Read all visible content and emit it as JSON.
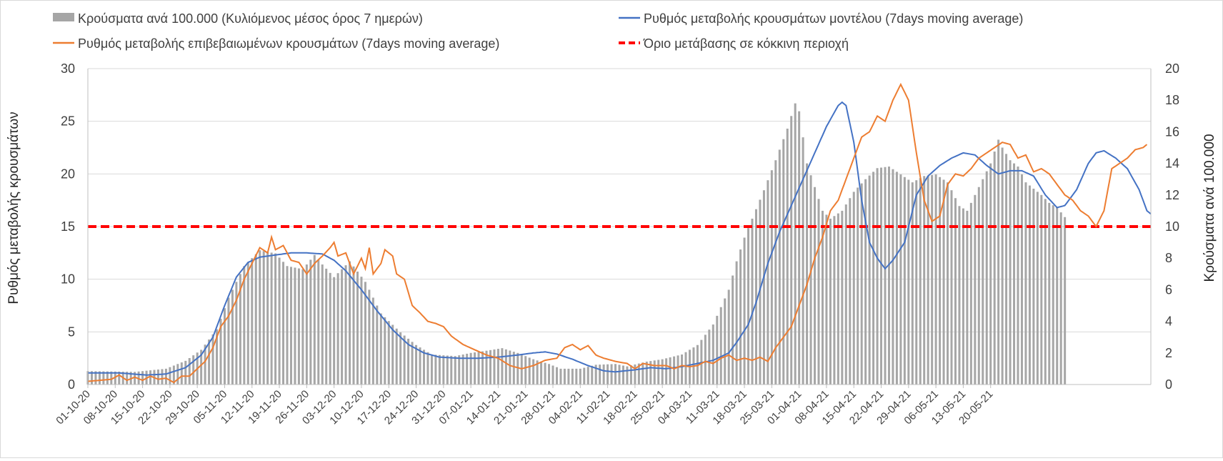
{
  "chart_data": {
    "type": "bar+line",
    "legend": {
      "bars": "Κρούσματα ανά 100.000 (Κυλιόμενος μέσος όρος 7 ημερών)",
      "model_rate": "Ρυθμός μεταβολής κρουσμάτων μοντέλου (7days moving average)",
      "confirmed_rate": "Ρυθμός μεταβολής επιβεβαιωμένων κρουσμάτων (7days moving average)",
      "threshold": "Όριο μετάβασης σε κόκκινη περιοχή"
    },
    "left_axis": {
      "label": "Ρυθμός μεταβολής κρουσμάτων",
      "min": 0,
      "max": 30,
      "ticks": [
        "0",
        "5",
        "10",
        "15",
        "20",
        "25",
        "30"
      ]
    },
    "right_axis": {
      "label": "Κρούσματα ανά 100.000",
      "min": 0,
      "max": 20,
      "ticks": [
        "0",
        "2",
        "4",
        "6",
        "8",
        "10",
        "12",
        "14",
        "16",
        "18",
        "20"
      ]
    },
    "threshold_value": 15,
    "start_date": "2020-10-01",
    "x_tick_labels": [
      "01-10-20",
      "08-10-20",
      "15-10-20",
      "22-10-20",
      "29-10-20",
      "05-11-20",
      "12-11-20",
      "19-11-20",
      "26-11-20",
      "03-12-20",
      "10-12-20",
      "17-12-20",
      "24-12-20",
      "31-12-20",
      "07-01-21",
      "14-01-21",
      "21-01-21",
      "28-01-21",
      "04-02-21",
      "11-02-21",
      "18-02-21",
      "25-02-21",
      "04-03-21",
      "11-03-21",
      "18-03-21",
      "25-03-21",
      "01-04-21",
      "08-04-21",
      "15-04-21",
      "22-04-21",
      "29-04-21",
      "06-05-21",
      "13-05-21",
      "20-05-21"
    ],
    "bars_keypoints": [
      [
        0,
        0.85
      ],
      [
        12,
        0.8
      ],
      [
        20,
        1.0
      ],
      [
        25,
        1.5
      ],
      [
        29,
        2.2
      ],
      [
        33,
        3.5
      ],
      [
        36,
        5.5
      ],
      [
        40,
        7.5
      ],
      [
        44,
        8.5
      ],
      [
        48,
        8.3
      ],
      [
        51,
        7.5
      ],
      [
        55,
        7.3
      ],
      [
        58,
        8.2
      ],
      [
        60,
        7.6
      ],
      [
        63,
        6.8
      ],
      [
        67,
        7.8
      ],
      [
        71,
        6.5
      ],
      [
        75,
        4.5
      ],
      [
        80,
        3.3
      ],
      [
        84,
        2.5
      ],
      [
        88,
        1.9
      ],
      [
        94,
        1.8
      ],
      [
        98,
        2.0
      ],
      [
        101,
        2.1
      ],
      [
        106,
        2.3
      ],
      [
        110,
        2.0
      ],
      [
        114,
        1.6
      ],
      [
        118,
        1.3
      ],
      [
        121,
        1.0
      ],
      [
        126,
        1.0
      ],
      [
        130,
        1.25
      ],
      [
        135,
        1.3
      ],
      [
        138,
        1.15
      ],
      [
        143,
        1.45
      ],
      [
        147,
        1.6
      ],
      [
        152,
        1.9
      ],
      [
        156,
        2.5
      ],
      [
        160,
        3.8
      ],
      [
        164,
        6.0
      ],
      [
        166,
        7.8
      ],
      [
        168,
        9.3
      ],
      [
        170,
        10.5
      ],
      [
        173,
        12.3
      ],
      [
        176,
        14.2
      ],
      [
        179,
        16.2
      ],
      [
        181,
        17.8
      ],
      [
        182,
        17.3
      ],
      [
        184,
        14.0
      ],
      [
        186,
        12.5
      ],
      [
        188,
        11.0
      ],
      [
        190,
        10.5
      ],
      [
        193,
        11.0
      ],
      [
        196,
        12.2
      ],
      [
        199,
        13.0
      ],
      [
        202,
        13.7
      ],
      [
        205,
        13.8
      ],
      [
        208,
        13.3
      ],
      [
        211,
        12.8
      ],
      [
        214,
        13.2
      ],
      [
        217,
        13.3
      ],
      [
        220,
        12.8
      ],
      [
        223,
        11.3
      ],
      [
        225,
        11.0
      ],
      [
        228,
        12.5
      ],
      [
        231,
        14.0
      ],
      [
        233,
        15.5
      ],
      [
        234,
        15.0
      ],
      [
        236,
        14.2
      ],
      [
        238,
        13.8
      ],
      [
        240,
        12.8
      ],
      [
        242,
        12.4
      ],
      [
        244,
        12.0
      ],
      [
        246,
        11.5
      ],
      [
        248,
        11.2
      ],
      [
        250,
        10.6
      ]
    ],
    "model_keypoints": [
      [
        0,
        1.1
      ],
      [
        8,
        1.1
      ],
      [
        15,
        0.9
      ],
      [
        20,
        1.0
      ],
      [
        25,
        1.6
      ],
      [
        29,
        2.8
      ],
      [
        32,
        4.5
      ],
      [
        35,
        7.5
      ],
      [
        38,
        10.2
      ],
      [
        41,
        11.6
      ],
      [
        44,
        12.1
      ],
      [
        48,
        12.3
      ],
      [
        52,
        12.5
      ],
      [
        56,
        12.5
      ],
      [
        60,
        12.4
      ],
      [
        63,
        11.8
      ],
      [
        66,
        10.8
      ],
      [
        70,
        9.0
      ],
      [
        74,
        7.0
      ],
      [
        78,
        5.2
      ],
      [
        82,
        3.8
      ],
      [
        86,
        3.0
      ],
      [
        90,
        2.6
      ],
      [
        95,
        2.5
      ],
      [
        100,
        2.5
      ],
      [
        105,
        2.6
      ],
      [
        110,
        2.8
      ],
      [
        114,
        3.0
      ],
      [
        117,
        3.1
      ],
      [
        120,
        2.9
      ],
      [
        124,
        2.4
      ],
      [
        128,
        1.8
      ],
      [
        132,
        1.3
      ],
      [
        135,
        1.2
      ],
      [
        140,
        1.4
      ],
      [
        144,
        1.6
      ],
      [
        148,
        1.5
      ],
      [
        152,
        1.7
      ],
      [
        156,
        2.0
      ],
      [
        160,
        2.3
      ],
      [
        164,
        3.0
      ],
      [
        166,
        4.0
      ],
      [
        169,
        5.7
      ],
      [
        171,
        7.8
      ],
      [
        174,
        11.5
      ],
      [
        177,
        14.5
      ],
      [
        180,
        17.0
      ],
      [
        183,
        19.5
      ],
      [
        186,
        22.0
      ],
      [
        189,
        24.5
      ],
      [
        192,
        26.5
      ],
      [
        193,
        26.8
      ],
      [
        194,
        26.5
      ],
      [
        196,
        23.0
      ],
      [
        198,
        17.5
      ],
      [
        200,
        13.5
      ],
      [
        202,
        12.0
      ],
      [
        204,
        11.0
      ],
      [
        206,
        11.8
      ],
      [
        209,
        13.5
      ],
      [
        212,
        18.0
      ],
      [
        215,
        19.8
      ],
      [
        218,
        20.8
      ],
      [
        221,
        21.5
      ],
      [
        224,
        22.0
      ],
      [
        227,
        21.8
      ],
      [
        230,
        20.8
      ],
      [
        233,
        20.0
      ],
      [
        236,
        20.3
      ],
      [
        239,
        20.3
      ],
      [
        242,
        19.8
      ],
      [
        245,
        18.0
      ],
      [
        248,
        16.8
      ],
      [
        250,
        17.0
      ],
      [
        253,
        18.5
      ],
      [
        256,
        21.0
      ],
      [
        258,
        22.0
      ],
      [
        260,
        22.2
      ],
      [
        263,
        21.5
      ],
      [
        266,
        20.5
      ],
      [
        269,
        18.5
      ],
      [
        271,
        16.5
      ],
      [
        272,
        16.2
      ]
    ],
    "confirmed_keypoints": [
      [
        0,
        0.3
      ],
      [
        3,
        0.4
      ],
      [
        6,
        0.5
      ],
      [
        8,
        0.9
      ],
      [
        10,
        0.4
      ],
      [
        12,
        0.7
      ],
      [
        14,
        0.4
      ],
      [
        16,
        0.8
      ],
      [
        18,
        0.5
      ],
      [
        20,
        0.6
      ],
      [
        22,
        0.2
      ],
      [
        24,
        0.8
      ],
      [
        26,
        0.8
      ],
      [
        28,
        1.5
      ],
      [
        30,
        2.2
      ],
      [
        32,
        3.5
      ],
      [
        34,
        5.5
      ],
      [
        36,
        6.5
      ],
      [
        38,
        8.0
      ],
      [
        40,
        10.0
      ],
      [
        42,
        11.5
      ],
      [
        44,
        13.0
      ],
      [
        46,
        12.5
      ],
      [
        47,
        14.0
      ],
      [
        48,
        12.8
      ],
      [
        50,
        13.2
      ],
      [
        52,
        11.8
      ],
      [
        54,
        11.6
      ],
      [
        56,
        10.5
      ],
      [
        58,
        11.5
      ],
      [
        60,
        12.2
      ],
      [
        62,
        13.0
      ],
      [
        63,
        13.5
      ],
      [
        64,
        12.2
      ],
      [
        66,
        12.5
      ],
      [
        68,
        10.5
      ],
      [
        70,
        12.0
      ],
      [
        71,
        11.0
      ],
      [
        72,
        13.0
      ],
      [
        73,
        10.5
      ],
      [
        75,
        11.5
      ],
      [
        76,
        12.8
      ],
      [
        78,
        12.2
      ],
      [
        79,
        10.5
      ],
      [
        81,
        10.0
      ],
      [
        83,
        7.5
      ],
      [
        85,
        6.8
      ],
      [
        87,
        6.0
      ],
      [
        89,
        5.8
      ],
      [
        91,
        5.5
      ],
      [
        93,
        4.6
      ],
      [
        96,
        3.8
      ],
      [
        99,
        3.3
      ],
      [
        102,
        2.8
      ],
      [
        105,
        2.5
      ],
      [
        108,
        1.8
      ],
      [
        111,
        1.5
      ],
      [
        114,
        1.8
      ],
      [
        117,
        2.3
      ],
      [
        120,
        2.5
      ],
      [
        122,
        3.5
      ],
      [
        124,
        3.8
      ],
      [
        126,
        3.3
      ],
      [
        128,
        3.7
      ],
      [
        130,
        2.8
      ],
      [
        132,
        2.5
      ],
      [
        135,
        2.2
      ],
      [
        138,
        2.0
      ],
      [
        140,
        1.5
      ],
      [
        142,
        2.0
      ],
      [
        145,
        1.8
      ],
      [
        148,
        1.8
      ],
      [
        150,
        1.5
      ],
      [
        152,
        1.8
      ],
      [
        154,
        1.7
      ],
      [
        156,
        1.8
      ],
      [
        158,
        2.2
      ],
      [
        160,
        2.0
      ],
      [
        162,
        2.5
      ],
      [
        164,
        2.8
      ],
      [
        166,
        2.3
      ],
      [
        168,
        2.5
      ],
      [
        170,
        2.3
      ],
      [
        172,
        2.6
      ],
      [
        174,
        2.2
      ],
      [
        176,
        3.5
      ],
      [
        178,
        4.5
      ],
      [
        180,
        5.5
      ],
      [
        182,
        7.5
      ],
      [
        184,
        9.5
      ],
      [
        186,
        12.0
      ],
      [
        188,
        14.0
      ],
      [
        190,
        16.5
      ],
      [
        192,
        17.5
      ],
      [
        194,
        19.5
      ],
      [
        196,
        21.5
      ],
      [
        198,
        23.5
      ],
      [
        200,
        24.0
      ],
      [
        202,
        25.5
      ],
      [
        204,
        25.0
      ],
      [
        206,
        27.0
      ],
      [
        208,
        28.5
      ],
      [
        210,
        27.0
      ],
      [
        212,
        22.0
      ],
      [
        214,
        17.5
      ],
      [
        216,
        15.5
      ],
      [
        218,
        16.0
      ],
      [
        220,
        19.0
      ],
      [
        222,
        20.0
      ],
      [
        224,
        19.8
      ],
      [
        226,
        20.5
      ],
      [
        228,
        21.5
      ],
      [
        230,
        22.0
      ],
      [
        232,
        22.5
      ],
      [
        234,
        23.0
      ],
      [
        236,
        22.8
      ],
      [
        238,
        21.5
      ],
      [
        240,
        21.8
      ],
      [
        242,
        20.2
      ],
      [
        244,
        20.5
      ],
      [
        246,
        20.0
      ],
      [
        248,
        19.0
      ],
      [
        250,
        18.0
      ],
      [
        252,
        17.5
      ],
      [
        254,
        16.5
      ],
      [
        256,
        16.0
      ],
      [
        258,
        15.0
      ],
      [
        260,
        16.5
      ],
      [
        262,
        20.5
      ],
      [
        264,
        21.0
      ],
      [
        266,
        21.5
      ],
      [
        268,
        22.3
      ],
      [
        270,
        22.5
      ],
      [
        271,
        22.8
      ]
    ]
  }
}
